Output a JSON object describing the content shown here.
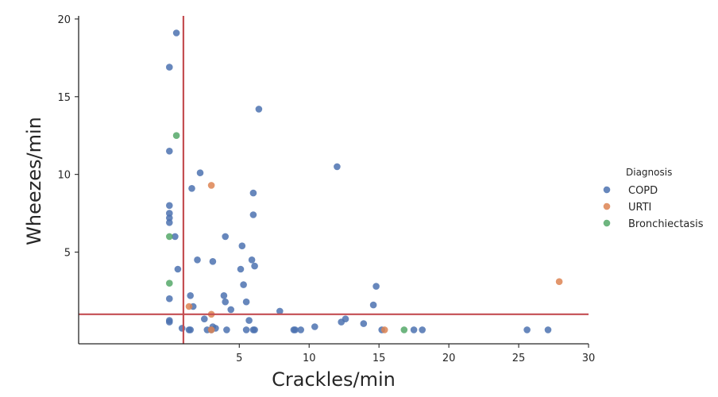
{
  "chart_data": {
    "type": "scatter",
    "xlabel": "Crackles/min",
    "ylabel": "Wheezes/min",
    "xlim": [
      -6.5,
      30
    ],
    "ylim": [
      -0.9,
      20.2
    ],
    "xticks": [
      5,
      10,
      15,
      20,
      25,
      30
    ],
    "yticks": [
      5,
      10,
      15,
      20
    ],
    "grid": false,
    "legend_title": "Diagnosis",
    "legend_position": "right",
    "reference_lines": {
      "color": "#c44e52",
      "vertical_x": 1.0,
      "horizontal_y": 1.0
    },
    "series": [
      {
        "name": "COPD",
        "color": "#4c72b0",
        "points": [
          [
            0.5,
            19.1
          ],
          [
            0.0,
            16.9
          ],
          [
            6.4,
            14.2
          ],
          [
            0.0,
            11.5
          ],
          [
            12.0,
            10.5
          ],
          [
            2.2,
            10.1
          ],
          [
            1.6,
            9.1
          ],
          [
            6.0,
            8.8
          ],
          [
            0.0,
            8.0
          ],
          [
            0.0,
            7.5
          ],
          [
            6.0,
            7.4
          ],
          [
            0.0,
            7.2
          ],
          [
            0.0,
            6.9
          ],
          [
            0.4,
            6.0
          ],
          [
            4.0,
            6.0
          ],
          [
            5.2,
            5.4
          ],
          [
            2.0,
            4.5
          ],
          [
            5.9,
            4.5
          ],
          [
            3.1,
            4.4
          ],
          [
            6.1,
            4.1
          ],
          [
            0.6,
            3.9
          ],
          [
            5.1,
            3.9
          ],
          [
            5.3,
            2.9
          ],
          [
            14.8,
            2.8
          ],
          [
            0.0,
            2.0
          ],
          [
            1.5,
            2.2
          ],
          [
            3.9,
            2.2
          ],
          [
            4.0,
            1.8
          ],
          [
            5.5,
            1.8
          ],
          [
            1.7,
            1.5
          ],
          [
            14.6,
            1.6
          ],
          [
            4.4,
            1.3
          ],
          [
            7.9,
            1.2
          ],
          [
            12.6,
            0.7
          ],
          [
            0.0,
            0.6
          ],
          [
            0.0,
            0.5
          ],
          [
            2.5,
            0.7
          ],
          [
            5.7,
            0.6
          ],
          [
            12.3,
            0.5
          ],
          [
            13.9,
            0.4
          ],
          [
            0.9,
            0.1
          ],
          [
            3.1,
            0.2
          ],
          [
            10.4,
            0.2
          ],
          [
            3.3,
            0.1
          ],
          [
            1.4,
            0.0
          ],
          [
            1.5,
            0.0
          ],
          [
            2.7,
            0.0
          ],
          [
            3.0,
            0.0
          ],
          [
            4.1,
            0.0
          ],
          [
            5.5,
            0.0
          ],
          [
            6.0,
            0.0
          ],
          [
            6.1,
            0.0
          ],
          [
            8.9,
            0.0
          ],
          [
            9.0,
            0.0
          ],
          [
            9.4,
            0.0
          ],
          [
            15.2,
            0.0
          ],
          [
            17.5,
            0.0
          ],
          [
            18.1,
            0.0
          ],
          [
            25.6,
            0.0
          ],
          [
            27.1,
            0.0
          ]
        ]
      },
      {
        "name": "URTI",
        "color": "#dd8452",
        "points": [
          [
            3.0,
            9.3
          ],
          [
            27.9,
            3.1
          ],
          [
            1.4,
            1.5
          ],
          [
            3.0,
            1.0
          ],
          [
            3.0,
            0.0
          ],
          [
            15.4,
            0.0
          ]
        ]
      },
      {
        "name": "Bronchiectasis",
        "color": "#55a868",
        "points": [
          [
            0.5,
            12.5
          ],
          [
            0.0,
            6.0
          ],
          [
            0.0,
            3.0
          ],
          [
            16.8,
            0.0
          ]
        ]
      }
    ]
  }
}
